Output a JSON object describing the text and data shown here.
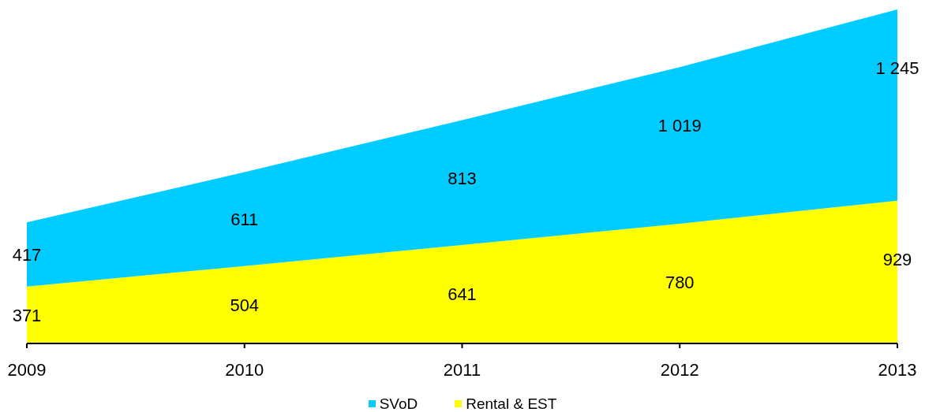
{
  "chart_data": {
    "type": "area",
    "stacked": true,
    "categories": [
      "2009",
      "2010",
      "2011",
      "2012",
      "2013"
    ],
    "series": [
      {
        "name": "Rental & EST",
        "color": "#ffff00",
        "values": [
          371,
          504,
          641,
          780,
          929
        ],
        "value_labels": [
          "371",
          "504",
          "641",
          "780",
          "929"
        ]
      },
      {
        "name": "SVoD",
        "color": "#00ccff",
        "values": [
          417,
          611,
          813,
          1019,
          1245
        ],
        "value_labels": [
          "417",
          "611",
          "813",
          "1 019",
          "1 245"
        ]
      }
    ],
    "legend": "bottom"
  }
}
